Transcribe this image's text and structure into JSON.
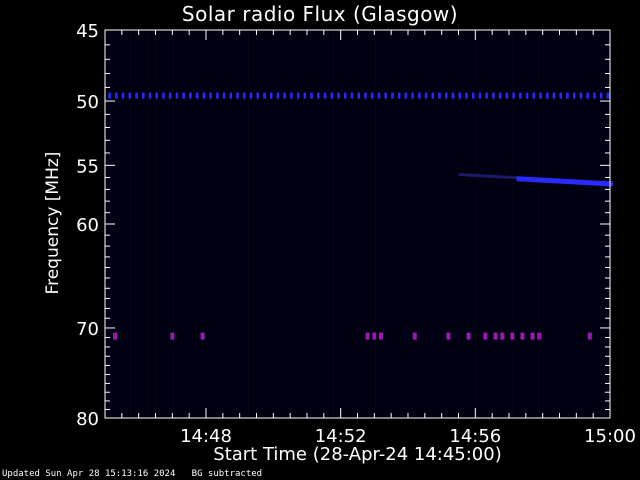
{
  "chart_data": {
    "type": "heatmap",
    "title": "Solar radio Flux (Glasgow)",
    "xlabel": "Start Time (28-Apr-24 14:45:00)",
    "ylabel": "Frequency [MHz]",
    "x_ticks": [
      "14:48",
      "14:52",
      "14:56",
      "15:00"
    ],
    "x_tick_minutes": [
      3,
      7,
      11,
      15
    ],
    "x_range_minutes": [
      0,
      15
    ],
    "y_ticks": [
      45,
      50,
      55,
      60,
      70,
      80
    ],
    "y_range_mhz": [
      45,
      80
    ],
    "y_scale": "log",
    "colors": {
      "background": "#000000",
      "plot_background": "#000010",
      "band": "#2a2aff",
      "band_faint": "#1a1a66",
      "interference": "#9a1ab0",
      "axis": "#ffffff"
    },
    "features": [
      {
        "label": "steady emission line",
        "frequency": 49.6,
        "t_start": 0.1,
        "t_end": 15
      },
      {
        "label": "drifting emission",
        "frequency_start": 55.8,
        "frequency_end": 56.5,
        "t_start": 10.5,
        "t_end": 15
      },
      {
        "label": "bursts",
        "frequency": 70.8,
        "times": [
          0.3,
          2.0,
          2.9,
          7.8,
          8.0,
          8.2,
          9.2,
          10.2,
          10.8,
          11.3,
          11.6,
          11.8,
          12.1,
          12.4,
          12.7,
          12.9,
          14.4
        ]
      }
    ]
  },
  "footer": {
    "text": "Updated Sun Apr 28 15:13:16 2024   BG subtracted"
  }
}
